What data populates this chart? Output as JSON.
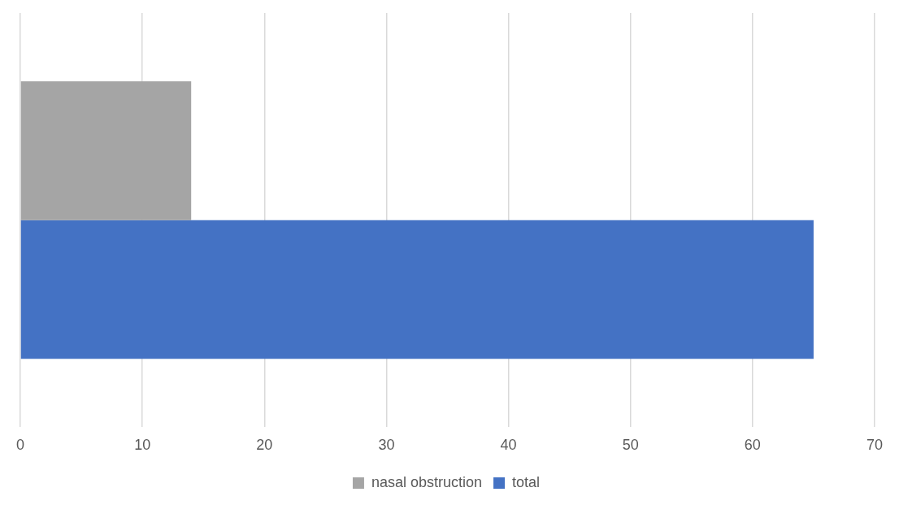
{
  "chart_data": {
    "type": "bar",
    "orientation": "horizontal",
    "categories": [
      null
    ],
    "series": [
      {
        "name": "nasal obstruction",
        "color": "#a5a5a5",
        "values": [
          14
        ]
      },
      {
        "name": "total",
        "color": "#4472c4",
        "values": [
          65
        ]
      }
    ],
    "xlim": [
      0,
      70
    ],
    "xticks": [
      0,
      10,
      20,
      30,
      40,
      50,
      60,
      70
    ],
    "grid": "x",
    "legend": "bottom",
    "tick_labels": "x"
  }
}
